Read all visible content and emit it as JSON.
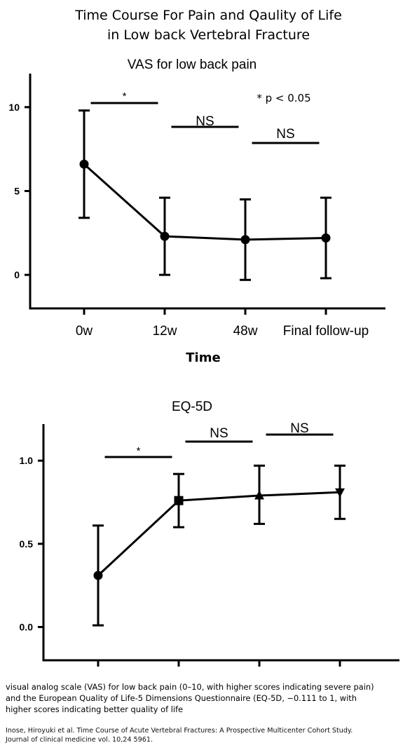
{
  "figure": {
    "title_lines": [
      "Time Course For Pain and Qaulity of Life",
      "in Low back Vertebral Fracture"
    ],
    "caption_lines": [
      "visual analog scale (VAS) for low back pain (0–10, with higher scores indicating severe pain)",
      "and the European Quality of Life-5 Dimensions Questionnaire (EQ-5D, −0.111 to 1, with",
      "higher scores indicating better quality of life"
    ],
    "citation_lines": [
      "Inose, Hiroyuki et al. Time Course of Acute Vertebral Fractures: A Prospective Multicenter Cohort Study.",
      "Journal of clinical medicine vol. 10,24 5961."
    ]
  },
  "chart_data": [
    {
      "type": "line",
      "title": "VAS for low back pain",
      "xlabel": "Time",
      "ylabel": "",
      "categories": [
        "0w",
        "12w",
        "48w",
        "Final follow-up"
      ],
      "ylim": [
        -2,
        12
      ],
      "yticks": [
        0,
        5,
        10
      ],
      "ytick_labels": [
        "0",
        "5",
        "10"
      ],
      "grid": false,
      "series": [
        {
          "marker": "circle",
          "values": [
            6.6,
            2.3,
            2.1,
            2.2
          ],
          "err_low": [
            3.4,
            0.0,
            -0.3,
            -0.2
          ],
          "err_high": [
            9.8,
            4.6,
            4.5,
            4.6
          ]
        }
      ],
      "significance": [
        {
          "from": 0,
          "to": 1,
          "label": "*"
        },
        {
          "from": 1,
          "to": 2,
          "label": "NS"
        },
        {
          "from": 2,
          "to": 3,
          "label": "NS"
        }
      ],
      "annotation": "* p < 0.05"
    },
    {
      "type": "line",
      "title": "EQ-5D",
      "xlabel": "",
      "ylabel": "",
      "categories": [
        "",
        "",
        "",
        ""
      ],
      "ylim": [
        -0.2,
        1.22
      ],
      "yticks": [
        0.0,
        0.5,
        1.0
      ],
      "ytick_labels": [
        "0.0",
        "0.5",
        "1.0"
      ],
      "grid": false,
      "series": [
        {
          "markers": [
            "circle",
            "square",
            "triangle-up",
            "triangle-down"
          ],
          "values": [
            0.31,
            0.76,
            0.79,
            0.81
          ],
          "err_low": [
            0.01,
            0.6,
            0.62,
            0.65
          ],
          "err_high": [
            0.61,
            0.92,
            0.97,
            0.97
          ]
        }
      ],
      "significance": [
        {
          "from": 0,
          "to": 1,
          "label": "*"
        },
        {
          "from": 1,
          "to": 2,
          "label": "NS"
        },
        {
          "from": 2,
          "to": 3,
          "label": "NS"
        }
      ]
    }
  ]
}
